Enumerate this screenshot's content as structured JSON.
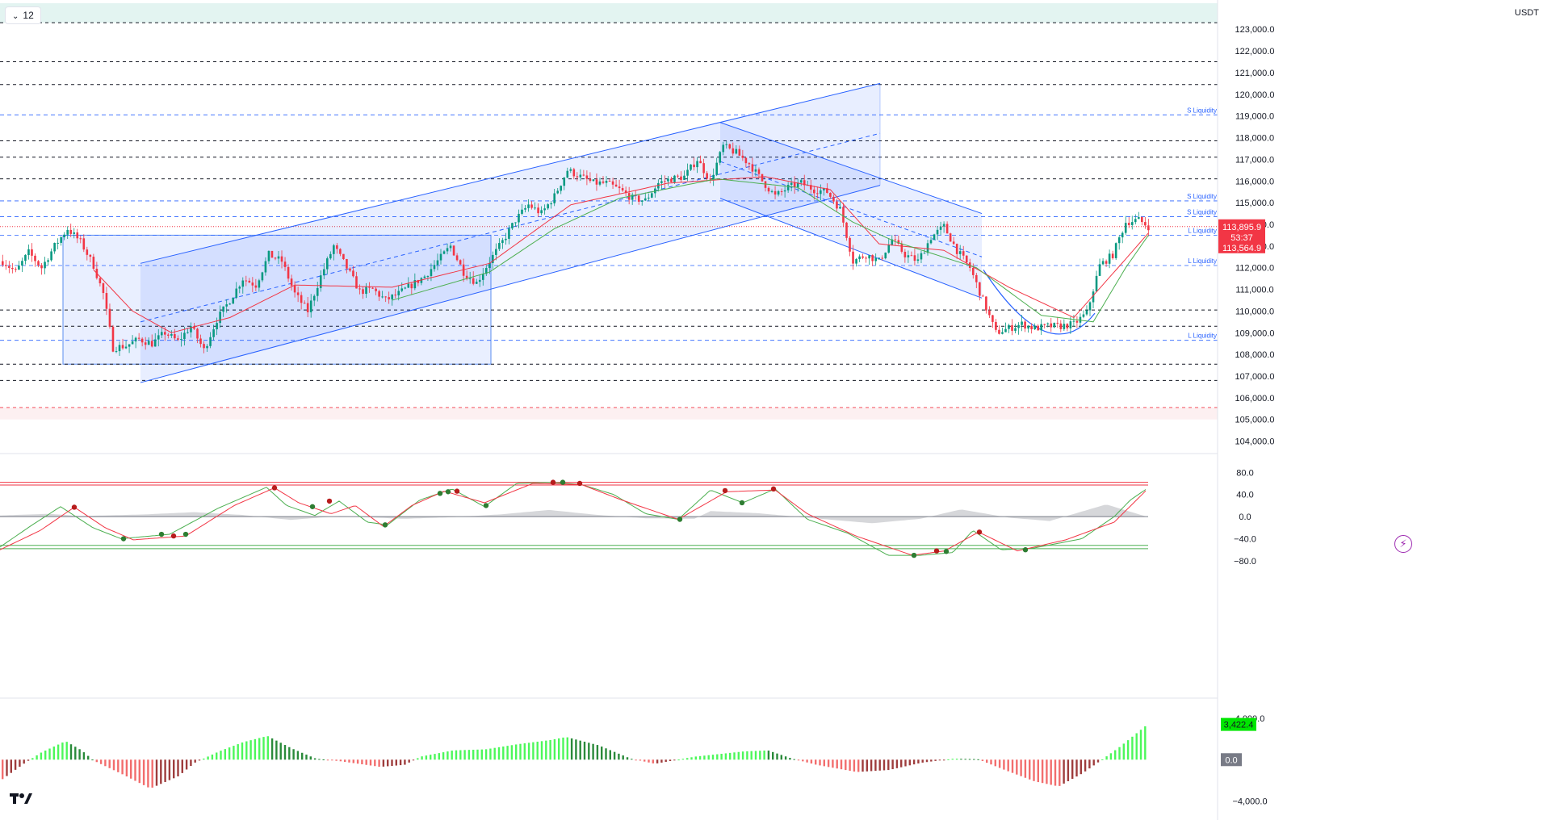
{
  "toolbar": {
    "interval": "12"
  },
  "axis": {
    "currency": "USDT"
  },
  "price_badge": {
    "last": "113,895.9",
    "countdown": "53:37",
    "ema": "113,564.9"
  },
  "levels": {
    "s_liquidity": "S Liquidity",
    "l_liquidity": "L Liquidity"
  },
  "indicators": {
    "macd_last": "3,422.4",
    "macd_zero": "0.0"
  },
  "colors": {
    "bull": "#089981",
    "bear": "#f23645",
    "channel": "#2962ff",
    "ema_red": "#f23645",
    "ema_green": "#4caf50"
  },
  "chart_data": [
    {
      "type": "candlestick",
      "ylim": [
        103500,
        124200
      ],
      "y_ticks": [
        104000,
        105000,
        106000,
        107000,
        108000,
        109000,
        110000,
        111000,
        112000,
        113000,
        114000,
        115000,
        116000,
        117000,
        118000,
        119000,
        120000,
        121000,
        122000,
        123000
      ],
      "y_tick_labels": [
        "104,000.0",
        "105,000.0",
        "106,000.0",
        "107,000.0",
        "108,000.0",
        "109,000.0",
        "110,000.0",
        "111,000.0",
        "112,000.0",
        "113,000.0",
        "114,000.0",
        "115,000.0",
        "116,000.0",
        "117,000.0",
        "118,000.0",
        "119,000.0",
        "120,000.0",
        "121,000.0",
        "122,000.0",
        "123,000.0"
      ],
      "horizontal_levels": [
        {
          "price": 123300,
          "style": "black-dashed"
        },
        {
          "price": 121500,
          "style": "black-dashed"
        },
        {
          "price": 120450,
          "style": "black-dashed"
        },
        {
          "price": 119050,
          "style": "blue-dashed",
          "label": "S Liquidity"
        },
        {
          "price": 117850,
          "style": "black-dashed"
        },
        {
          "price": 117100,
          "style": "black-dashed"
        },
        {
          "price": 116100,
          "style": "black-dashed"
        },
        {
          "price": 115080,
          "style": "blue-dashed",
          "label": "S Liquidity"
        },
        {
          "price": 114350,
          "style": "blue-dashed",
          "label": "S Liquidity"
        },
        {
          "price": 113500,
          "style": "blue-dashed",
          "label": "L Liquidity"
        },
        {
          "price": 112100,
          "style": "blue-dashed",
          "label": "L Liquidity"
        },
        {
          "price": 110050,
          "style": "black-dashed"
        },
        {
          "price": 109300,
          "style": "black-dashed"
        },
        {
          "price": 108650,
          "style": "blue-dashed",
          "label": "L Liquidity"
        },
        {
          "price": 107550,
          "style": "black-dashed"
        },
        {
          "price": 106800,
          "style": "black-dashed"
        },
        {
          "price": 105550,
          "style": "red-dashed"
        }
      ],
      "candle_anchors": [
        [
          0,
          112300
        ],
        [
          4,
          111800
        ],
        [
          8,
          112700
        ],
        [
          12,
          112000
        ],
        [
          16,
          113000
        ],
        [
          20,
          113800
        ],
        [
          24,
          113200
        ],
        [
          28,
          112100
        ],
        [
          31,
          110800
        ],
        [
          34,
          108300
        ],
        [
          38,
          108400
        ],
        [
          42,
          108700
        ],
        [
          46,
          108500
        ],
        [
          50,
          109000
        ],
        [
          54,
          108600
        ],
        [
          58,
          109300
        ],
        [
          62,
          108200
        ],
        [
          66,
          109600
        ],
        [
          70,
          110500
        ],
        [
          74,
          111500
        ],
        [
          78,
          111200
        ],
        [
          82,
          112600
        ],
        [
          86,
          112300
        ],
        [
          90,
          110800
        ],
        [
          94,
          110000
        ],
        [
          98,
          111600
        ],
        [
          102,
          113000
        ],
        [
          106,
          112000
        ],
        [
          110,
          110900
        ],
        [
          114,
          111000
        ],
        [
          118,
          110500
        ],
        [
          122,
          110800
        ],
        [
          126,
          111200
        ],
        [
          130,
          111600
        ],
        [
          134,
          112300
        ],
        [
          138,
          113000
        ],
        [
          142,
          111800
        ],
        [
          146,
          111300
        ],
        [
          150,
          112300
        ],
        [
          154,
          113200
        ],
        [
          158,
          114200
        ],
        [
          162,
          114900
        ],
        [
          166,
          114500
        ],
        [
          170,
          115300
        ],
        [
          174,
          116500
        ],
        [
          178,
          116200
        ],
        [
          182,
          115900
        ],
        [
          186,
          115900
        ],
        [
          190,
          115600
        ],
        [
          194,
          115200
        ],
        [
          198,
          115100
        ],
        [
          202,
          115900
        ],
        [
          206,
          116100
        ],
        [
          210,
          116200
        ],
        [
          214,
          117000
        ],
        [
          218,
          116000
        ],
        [
          222,
          117600
        ],
        [
          226,
          117300
        ],
        [
          230,
          116800
        ],
        [
          234,
          116000
        ],
        [
          238,
          115300
        ],
        [
          242,
          115700
        ],
        [
          246,
          115900
        ],
        [
          250,
          115600
        ],
        [
          254,
          115500
        ],
        [
          258,
          114700
        ],
        [
          262,
          112300
        ],
        [
          266,
          112600
        ],
        [
          270,
          112300
        ],
        [
          274,
          113300
        ],
        [
          278,
          112600
        ],
        [
          282,
          112300
        ],
        [
          286,
          113400
        ],
        [
          290,
          113900
        ],
        [
          294,
          112800
        ],
        [
          298,
          112000
        ],
        [
          302,
          110500
        ],
        [
          306,
          109000
        ],
        [
          310,
          109200
        ],
        [
          314,
          109400
        ],
        [
          318,
          109200
        ],
        [
          322,
          109300
        ],
        [
          326,
          109300
        ],
        [
          330,
          109400
        ],
        [
          334,
          109900
        ],
        [
          338,
          112100
        ],
        [
          342,
          112600
        ],
        [
          346,
          114100
        ],
        [
          350,
          114200
        ],
        [
          353,
          113900
        ]
      ],
      "ema_red_anchors": [
        [
          28,
          111900
        ],
        [
          40,
          110000
        ],
        [
          52,
          109000
        ],
        [
          70,
          109700
        ],
        [
          90,
          111200
        ],
        [
          120,
          111100
        ],
        [
          150,
          112200
        ],
        [
          175,
          114900
        ],
        [
          205,
          115900
        ],
        [
          235,
          116200
        ],
        [
          255,
          115600
        ],
        [
          270,
          113100
        ],
        [
          290,
          112800
        ],
        [
          310,
          111100
        ],
        [
          330,
          109700
        ],
        [
          346,
          112400
        ],
        [
          353,
          113600
        ]
      ],
      "ema_green_anchors": [
        [
          120,
          110500
        ],
        [
          150,
          111800
        ],
        [
          170,
          113800
        ],
        [
          190,
          115200
        ],
        [
          220,
          116100
        ],
        [
          245,
          115700
        ],
        [
          262,
          114100
        ],
        [
          275,
          113200
        ],
        [
          300,
          112000
        ],
        [
          320,
          109800
        ],
        [
          336,
          109500
        ],
        [
          346,
          112000
        ],
        [
          353,
          113500
        ]
      ],
      "channels": [
        {
          "name": "rising-channel",
          "upper": [
            [
              174,
              112200
            ],
            [
              1090,
              120500
            ]
          ],
          "lower": [
            [
              174,
              106700
            ],
            [
              1090,
              115800
            ]
          ],
          "mid_dashed": [
            [
              174,
              109500
            ],
            [
              1090,
              118200
            ]
          ]
        },
        {
          "name": "falling-channel",
          "upper": [
            [
              892,
              118700
            ],
            [
              1216,
              114500
            ]
          ],
          "lower": [
            [
              892,
              115200
            ],
            [
              1216,
              110600
            ]
          ],
          "mid_dashed": [
            [
              892,
              116900
            ],
            [
              1216,
              112500
            ]
          ]
        }
      ],
      "curve": {
        "points": [
          [
            1218,
            111900
          ],
          [
            1300,
            108250
          ],
          [
            1356,
            109900
          ]
        ]
      }
    },
    {
      "type": "line",
      "ylim": [
        -102,
        95
      ],
      "y_ticks": [
        80,
        40,
        0,
        -40,
        -80
      ],
      "y_tick_labels": [
        "80.0",
        "40.0",
        "0.0",
        "−40.0",
        "−80.0"
      ],
      "bands": [
        62,
        57,
        -52,
        -58
      ],
      "series_green_anchors": [
        [
          0,
          -55
        ],
        [
          40,
          -15
        ],
        [
          75,
          18
        ],
        [
          115,
          -20
        ],
        [
          150,
          -40
        ],
        [
          210,
          -32
        ],
        [
          270,
          15
        ],
        [
          330,
          53
        ],
        [
          355,
          20
        ],
        [
          390,
          2
        ],
        [
          420,
          28
        ],
        [
          455,
          -10
        ],
        [
          480,
          -15
        ],
        [
          520,
          30
        ],
        [
          560,
          50
        ],
        [
          600,
          18
        ],
        [
          640,
          60
        ],
        [
          680,
          62
        ],
        [
          720,
          58
        ],
        [
          760,
          40
        ],
        [
          800,
          5
        ],
        [
          840,
          -5
        ],
        [
          880,
          48
        ],
        [
          920,
          25
        ],
        [
          960,
          50
        ],
        [
          1000,
          -5
        ],
        [
          1050,
          -30
        ],
        [
          1100,
          -70
        ],
        [
          1140,
          -70
        ],
        [
          1180,
          -65
        ],
        [
          1205,
          -25
        ],
        [
          1240,
          -60
        ],
        [
          1280,
          -57
        ],
        [
          1340,
          -40
        ],
        [
          1380,
          0
        ],
        [
          1400,
          30
        ],
        [
          1420,
          50
        ]
      ],
      "series_red_anchors": [
        [
          0,
          -60
        ],
        [
          50,
          -25
        ],
        [
          92,
          17
        ],
        [
          130,
          -20
        ],
        [
          165,
          -42
        ],
        [
          230,
          -35
        ],
        [
          290,
          20
        ],
        [
          340,
          52
        ],
        [
          370,
          25
        ],
        [
          410,
          5
        ],
        [
          440,
          20
        ],
        [
          475,
          -18
        ],
        [
          510,
          20
        ],
        [
          550,
          46
        ],
        [
          600,
          25
        ],
        [
          660,
          60
        ],
        [
          720,
          58
        ],
        [
          770,
          30
        ],
        [
          840,
          -5
        ],
        [
          900,
          45
        ],
        [
          960,
          48
        ],
        [
          1000,
          5
        ],
        [
          1060,
          -35
        ],
        [
          1130,
          -70
        ],
        [
          1170,
          -62
        ],
        [
          1212,
          -28
        ],
        [
          1260,
          -62
        ],
        [
          1320,
          -42
        ],
        [
          1380,
          -10
        ],
        [
          1420,
          48
        ]
      ],
      "histogram_anchors": [
        [
          0,
          2
        ],
        [
          60,
          5
        ],
        [
          100,
          1
        ],
        [
          180,
          4
        ],
        [
          240,
          8
        ],
        [
          300,
          3
        ],
        [
          360,
          -6
        ],
        [
          420,
          1
        ],
        [
          500,
          -4
        ],
        [
          560,
          -1
        ],
        [
          620,
          4
        ],
        [
          680,
          12
        ],
        [
          740,
          3
        ],
        [
          800,
          -3
        ],
        [
          860,
          -4
        ],
        [
          880,
          10
        ],
        [
          940,
          6
        ],
        [
          1000,
          -2
        ],
        [
          1080,
          -12
        ],
        [
          1140,
          -4
        ],
        [
          1190,
          13
        ],
        [
          1250,
          -2
        ],
        [
          1300,
          -8
        ],
        [
          1370,
          22
        ],
        [
          1420,
          0
        ]
      ],
      "dots_red": [
        [
          92,
          17
        ],
        [
          215,
          -35
        ],
        [
          340,
          52
        ],
        [
          408,
          28
        ],
        [
          566,
          46
        ],
        [
          685,
          62
        ],
        [
          718,
          60
        ],
        [
          898,
          47
        ],
        [
          958,
          50
        ],
        [
          1160,
          -62
        ],
        [
          1213,
          -28
        ]
      ],
      "dots_green": [
        [
          153,
          -40
        ],
        [
          200,
          -32
        ],
        [
          230,
          -32
        ],
        [
          387,
          18
        ],
        [
          477,
          -15
        ],
        [
          545,
          42
        ],
        [
          555,
          45
        ],
        [
          602,
          20
        ],
        [
          697,
          62
        ],
        [
          842,
          -5
        ],
        [
          919,
          25
        ],
        [
          1132,
          -70
        ],
        [
          1172,
          -63
        ],
        [
          1270,
          -60
        ]
      ]
    },
    {
      "type": "bar",
      "ylim": [
        -4600,
        4800
      ],
      "y_ticks": [
        4000,
        0,
        -4000
      ],
      "y_tick_labels": [
        "4,000.0",
        "0.0",
        "−4,000.0"
      ],
      "histogram_anchors": [
        [
          0,
          -2000
        ],
        [
          30,
          -300
        ],
        [
          50,
          700
        ],
        [
          80,
          1800
        ],
        [
          100,
          900
        ],
        [
          115,
          -100
        ],
        [
          150,
          -1400
        ],
        [
          185,
          -2800
        ],
        [
          220,
          -1600
        ],
        [
          240,
          -300
        ],
        [
          270,
          800
        ],
        [
          300,
          1700
        ],
        [
          330,
          2300
        ],
        [
          360,
          1100
        ],
        [
          390,
          100
        ],
        [
          420,
          -150
        ],
        [
          470,
          -700
        ],
        [
          500,
          -500
        ],
        [
          520,
          300
        ],
        [
          560,
          900
        ],
        [
          600,
          1000
        ],
        [
          640,
          1500
        ],
        [
          680,
          1900
        ],
        [
          700,
          2200
        ],
        [
          740,
          1400
        ],
        [
          780,
          100
        ],
        [
          810,
          -400
        ],
        [
          860,
          300
        ],
        [
          920,
          800
        ],
        [
          950,
          900
        ],
        [
          980,
          100
        ],
        [
          1010,
          -500
        ],
        [
          1060,
          -1200
        ],
        [
          1100,
          -1000
        ],
        [
          1140,
          -300
        ],
        [
          1180,
          100
        ],
        [
          1210,
          50
        ],
        [
          1240,
          -900
        ],
        [
          1280,
          -2100
        ],
        [
          1310,
          -2600
        ],
        [
          1340,
          -1300
        ],
        [
          1360,
          -200
        ],
        [
          1385,
          1200
        ],
        [
          1420,
          3422
        ]
      ]
    }
  ]
}
